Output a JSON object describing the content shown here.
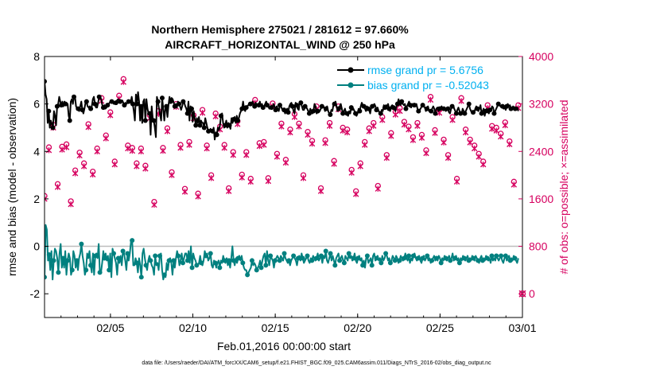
{
  "colors": {
    "rmse": "#000000",
    "bias": "#00807f",
    "obs": "#d6005f",
    "legend_text": "#00b0f0",
    "zero_line": "#bdbdbd"
  },
  "chart_data": {
    "type": "line",
    "title": "Northern Hemisphere 275021 / 281612 = 97.660%",
    "subtitle": "AIRCRAFT_HORIZONTAL_WIND @ 250 hPa",
    "xlabel": "Feb.01,2016 00:00:00 start",
    "ylabel_left": "rmse and bias (model - observation)",
    "ylabel_right": "# of obs: o=possible; ×=assimilated",
    "footnote": "data file: /Users/raeder/DAI/ATM_forcXX/CAM6_setup/f.e21.FHIST_BGC.f09_025.CAM6assim.011/Diags_NTrS_2016-02/obs_diag_output.nc",
    "xlim_days": [
      1,
      30
    ],
    "ylim_left": [
      -3,
      8
    ],
    "ylim_right": [
      -400,
      4000
    ],
    "x_ticks": [
      {
        "day": 5,
        "label": "02/05"
      },
      {
        "day": 10,
        "label": "02/10"
      },
      {
        "day": 15,
        "label": "02/15"
      },
      {
        "day": 20,
        "label": "02/20"
      },
      {
        "day": 25,
        "label": "02/25"
      },
      {
        "day": 30,
        "label": "03/01"
      }
    ],
    "y_left_ticks": [
      -2,
      0,
      2,
      4,
      6,
      8
    ],
    "y_right_ticks": [
      0,
      800,
      1600,
      2400,
      3200,
      4000
    ],
    "grid": false,
    "legend_position": "top-right",
    "series": [
      {
        "name": "rmse grand pr = 5.6756",
        "axis": "left",
        "marker": "filled-circle",
        "values": [
          6.95,
          6.4,
          6.2,
          5.2,
          5.7,
          5.0,
          5.3,
          5.15,
          5.0,
          5.7,
          5.5,
          5.1,
          5.9,
          6.0,
          6.3,
          6.1,
          5.95,
          6.1,
          5.9,
          6.1,
          6.0,
          5.95,
          6.0,
          5.5,
          5.3,
          6.1,
          6.2,
          6.0,
          6.3,
          6.3,
          5.9,
          5.8,
          5.8,
          5.7,
          5.9,
          6.1,
          5.75,
          5.6,
          5.8,
          6.05,
          6.1,
          5.9,
          5.85,
          5.9,
          5.8,
          5.9,
          6.2,
          6.3,
          6.0,
          5.85,
          5.85,
          6.05,
          6.3,
          6.25,
          6.2,
          5.95,
          5.85,
          5.95,
          5.8,
          5.85,
          5.95,
          6.0,
          6.05,
          6.15,
          6.1,
          6.05,
          6.0,
          6.1,
          6.05,
          6.15,
          6.2,
          6.15,
          6.1,
          6.05,
          6.15,
          6.05,
          5.95,
          6.05,
          6.0,
          6.05,
          6.1,
          6.15,
          6.05,
          6.3,
          6.0,
          5.7,
          5.3,
          6.4,
          6.0,
          6.5,
          6.1,
          5.3,
          5.9,
          5.2,
          6.1,
          6.2,
          5.3,
          6.2,
          5.8,
          5.6,
          5.6,
          4.7,
          5.9,
          5.4,
          5.3,
          5.0,
          4.6,
          6.3,
          6.1,
          5.8,
          5.55,
          5.3,
          6.25,
          5.8,
          5.3,
          5.8,
          5.9,
          5.45,
          5.95,
          6.3,
          6.1,
          6.25,
          6.2,
          6.05,
          5.9,
          6.0,
          5.85,
          6.1,
          6.0,
          5.9,
          5.75,
          5.9,
          6.1,
          6.05,
          5.9,
          5.8,
          5.6,
          6.1,
          5.3,
          5.9,
          5.8,
          5.25,
          5.7,
          5.4,
          5.1,
          5.4,
          5.2,
          5.45,
          5.1,
          5.3,
          5.2,
          5.2,
          5.0,
          5.4,
          5.2,
          5.0,
          4.85,
          4.8,
          4.95,
          4.9,
          4.85,
          5.0,
          4.5,
          4.8,
          4.7,
          5.0,
          4.9,
          5.1,
          5.5,
          5.6,
          5.2,
          5.0,
          5.1,
          5.3,
          5.0,
          5.2,
          5.1,
          4.95,
          5.4,
          5.2,
          5.35,
          5.45,
          5.2,
          5.5,
          5.3,
          5.4,
          5.6,
          5.7,
          5.8,
          6.1,
          5.8,
          5.7,
          5.85,
          5.9,
          5.95,
          6.05,
          6.0,
          5.95,
          6.1,
          6.0,
          5.9,
          6.05,
          5.95,
          6.0,
          5.95,
          6.1,
          5.9,
          6.0,
          5.85,
          5.9,
          6.0,
          6.1,
          5.95,
          5.9,
          5.8,
          5.9,
          5.85,
          5.8,
          6.0,
          5.9,
          5.75,
          5.9,
          5.8,
          5.7,
          5.95,
          5.9,
          5.8,
          5.7,
          5.75,
          5.6,
          5.7,
          5.8,
          5.65,
          5.9,
          6.0,
          6.05,
          5.9,
          5.7,
          5.6,
          6.05,
          5.95,
          5.8,
          5.75,
          6.1,
          6.05,
          5.9,
          5.75,
          5.75,
          5.9,
          5.85,
          5.8,
          5.7,
          5.6,
          5.8,
          5.7,
          5.6,
          5.7,
          6.0,
          5.9,
          5.6,
          5.7,
          5.65,
          5.7,
          5.8,
          5.9,
          5.95,
          5.85,
          5.7,
          5.8,
          5.9,
          5.7,
          5.6,
          5.55,
          5.75,
          5.7,
          5.95,
          6.0,
          6.1,
          5.9,
          5.7,
          5.8,
          5.9,
          6.0,
          5.8,
          5.6,
          5.7,
          5.8,
          5.6,
          5.6,
          5.5,
          5.7,
          5.6,
          5.85,
          5.75,
          5.8,
          5.7,
          5.6,
          5.5,
          5.6,
          5.8,
          5.7,
          5.9,
          6.05,
          5.95,
          5.9,
          5.8,
          5.7,
          5.9,
          5.8,
          5.75,
          5.6,
          5.85,
          5.9,
          5.95,
          6.0,
          5.9,
          5.75,
          5.85,
          5.7,
          5.65,
          5.6,
          5.75,
          5.7,
          5.95,
          5.85,
          5.95,
          5.9,
          6.0,
          5.8,
          5.7,
          5.9,
          5.95,
          5.85,
          5.8,
          5.7,
          5.9,
          6.0,
          6.2,
          6.0,
          5.95,
          6.1,
          6.0,
          5.95,
          6.0,
          5.8,
          5.9,
          6.0,
          6.1,
          5.95,
          5.85,
          6.0,
          5.9,
          5.95,
          5.9,
          6.0,
          5.8,
          5.7,
          5.75,
          5.8,
          5.9,
          5.95,
          5.9,
          5.85,
          5.7,
          5.8,
          5.9,
          5.7,
          5.75,
          5.7,
          5.8,
          5.9,
          5.8,
          5.6,
          5.8,
          5.85,
          5.7,
          5.8,
          5.85,
          5.9,
          5.75,
          5.8,
          5.85,
          5.7,
          5.75,
          5.8,
          5.65,
          5.6,
          5.8,
          5.9,
          5.95,
          5.8,
          5.7,
          5.6,
          5.75,
          5.85,
          5.7,
          5.6,
          5.55,
          5.8,
          5.7,
          5.6,
          5.7,
          5.8,
          5.9,
          6.0,
          5.8,
          5.7,
          5.6,
          5.65,
          5.6,
          5.8,
          5.9,
          5.8,
          5.7,
          5.8,
          5.95,
          5.6,
          5.7,
          5.8,
          5.5,
          5.7,
          5.8,
          5.65,
          5.6,
          5.75,
          5.7,
          5.9,
          5.85,
          5.6,
          5.7,
          5.8,
          5.9,
          6.0,
          5.95,
          5.9,
          5.85,
          5.9,
          5.8,
          5.85,
          5.75,
          5.9,
          6.0,
          5.9,
          5.95,
          5.8,
          5.8,
          5.9,
          5.85,
          5.8,
          5.75,
          5.85,
          5.7
        ]
      },
      {
        "name": "bias grand pr = -0.52043",
        "axis": "left",
        "marker": "filled-circle",
        "values": [
          -1.3,
          0.9,
          0.7,
          -0.6,
          -0.35,
          -1.0,
          -0.2,
          -1.4,
          -0.6,
          -0.1,
          -0.2,
          -0.5,
          -1.1,
          -0.3,
          0.1,
          -0.9,
          -0.5,
          -0.9,
          -0.2,
          -1.2,
          -0.6,
          -0.3,
          -0.5,
          -1.2,
          -1.0,
          -0.2,
          -0.4,
          -0.9,
          -0.6,
          -1.0,
          -0.5,
          -0.3,
          0.1,
          -0.4,
          -0.7,
          -1.2,
          -1.0,
          -0.3,
          -0.5,
          -0.2,
          -0.8,
          -1.1,
          -0.3,
          -1.2,
          -0.4,
          -0.3,
          -0.5,
          0.1,
          -1.1,
          -1.1,
          -0.7,
          -0.2,
          -0.5,
          -0.3,
          -0.6,
          -0.4,
          -1.0,
          -0.3,
          -1.3,
          -0.1,
          -0.3,
          -0.5,
          -0.7,
          -1.2,
          -0.5,
          -0.7,
          -0.4,
          -0.8,
          -0.2,
          -0.3,
          -0.6,
          -1.0,
          -0.3,
          -0.6,
          -0.3,
          0.2,
          0.25,
          -0.8,
          -0.8,
          -0.5,
          -0.7,
          -1.1,
          -0.5,
          -0.8,
          -1.3,
          -0.3,
          -0.1,
          -0.5,
          -0.8,
          -1.0,
          -0.6,
          -0.4,
          -0.6,
          -0.8,
          -0.9,
          -1.2,
          -0.4,
          -0.8,
          -0.7,
          -1.0,
          -0.4,
          -0.3,
          -1.0,
          -1.4,
          -1.2,
          -1.3,
          -0.7,
          -1.0,
          -0.6,
          -0.5,
          -0.7,
          -1.2,
          -0.6,
          -0.9,
          -0.5,
          -0.2,
          -0.4,
          -0.8,
          -0.6,
          -0.3,
          -0.7,
          -0.5,
          -0.3,
          -0.3,
          -0.6,
          -0.2,
          -0.7,
          0.0,
          -0.9,
          -0.3,
          -0.5,
          -0.6,
          -0.8,
          -0.8,
          -0.7,
          -0.4,
          -0.7,
          -0.8,
          -0.6,
          -0.2,
          -0.4,
          -0.3,
          -0.6,
          -0.5,
          -0.3,
          -0.8,
          -0.9,
          -0.6,
          -0.7,
          -0.9,
          -0.7,
          -0.6,
          -0.9,
          -0.6,
          -0.7,
          -0.4,
          -0.6,
          -0.7,
          -0.5,
          -0.8,
          -0.6,
          -0.9,
          -0.5,
          0.0,
          -0.6,
          -0.8,
          -0.5,
          -0.7,
          -0.5,
          -0.4,
          -0.6,
          -0.4,
          -0.7,
          -0.9,
          -1.0,
          -1.0,
          -1.2,
          -1.1,
          -1.0,
          -0.9,
          -0.6,
          -0.8,
          -0.7,
          -0.8,
          -1.0,
          -0.9,
          -0.8,
          -0.6,
          -0.9,
          -0.6,
          -0.4,
          -0.3,
          -0.8,
          -0.2,
          -0.6,
          -0.8,
          -0.4,
          -0.5,
          -0.6,
          -0.9,
          -0.6,
          -0.5,
          -0.4,
          -0.5,
          -0.6,
          -0.4,
          -0.5,
          -0.6,
          -0.3,
          -0.5,
          -0.6,
          -0.7,
          -0.6,
          -0.8,
          -0.6,
          -0.5,
          -0.4,
          -0.5,
          -0.6,
          -0.8,
          -0.5,
          -0.4,
          -0.6,
          -0.3,
          -0.5,
          -0.7,
          -0.6,
          -0.5,
          -0.4,
          -0.6,
          -0.7,
          -0.5,
          -0.6,
          -0.4,
          -0.5,
          -0.6,
          -0.5,
          -0.3,
          -0.6,
          -0.5,
          -0.4,
          -0.7,
          -0.4,
          -0.5,
          -0.2,
          -0.6,
          -0.7,
          -0.5,
          -0.3,
          -0.6,
          -0.4,
          -0.6,
          -0.8,
          -0.5,
          -0.4,
          -0.3,
          -0.6,
          -0.5,
          -0.4,
          -0.6,
          -0.7,
          -0.4,
          -0.5,
          -0.6,
          -0.3,
          -0.5,
          -0.4,
          -0.6,
          -0.5,
          -0.3,
          -0.6,
          -0.7,
          -0.5,
          -0.4,
          -0.6,
          -0.5,
          -0.8,
          -0.6,
          -0.9,
          -0.5,
          -0.4,
          -0.7,
          -0.6,
          -0.5,
          -0.8,
          -0.4,
          -0.3,
          -0.6,
          -0.5,
          -0.4,
          -0.6,
          -0.5,
          -0.7,
          -0.4,
          -0.6,
          -0.5,
          -0.3,
          -0.4,
          -0.6,
          -0.5,
          -0.7,
          -0.6,
          -0.4,
          -0.5,
          -0.6,
          -0.4,
          -0.5,
          -0.7,
          -0.6,
          -0.4,
          -0.5,
          -0.6,
          -0.5,
          -0.3,
          -0.5,
          -0.6,
          -0.4,
          -0.7,
          -0.5,
          -0.6,
          -0.4,
          -0.3,
          -0.5,
          -0.6,
          -0.5,
          -0.4,
          -0.6,
          -0.7,
          -0.5,
          -0.4,
          -0.6,
          -0.5,
          -0.4,
          -0.6,
          -0.5,
          -0.7,
          -0.6,
          -0.5,
          -0.4,
          -0.6,
          -0.5,
          -0.6,
          -0.4,
          -0.5,
          -0.7,
          -0.5,
          -0.6,
          -0.4,
          -0.5,
          -0.6,
          -0.5,
          -0.4,
          -0.6,
          -0.5,
          -0.3,
          -0.6,
          -0.5,
          -0.4,
          -0.6,
          -0.5,
          -0.7,
          -0.5,
          -0.6,
          -0.4,
          -0.5,
          -0.6,
          -0.5,
          -0.4,
          -0.6,
          -0.5,
          -0.6,
          -0.4,
          -0.5,
          -0.6,
          -0.4,
          -0.5,
          -0.6,
          -0.7,
          -0.5,
          -0.4,
          -0.6,
          -0.5,
          -0.6,
          -0.4,
          -0.5,
          -0.6,
          -0.5,
          -0.7,
          -0.4,
          -0.6,
          -0.5,
          -0.6,
          -0.4,
          -0.5,
          -0.6,
          -0.5,
          -0.4,
          -0.6,
          -0.7,
          -0.5,
          -0.4,
          -0.6,
          -0.5,
          -0.4,
          -0.6,
          -0.5,
          -0.6,
          -0.4,
          -0.5,
          -0.6,
          -0.7,
          -0.5
        ]
      },
      {
        "name": "possible",
        "axis": "right",
        "marker": "open-circle",
        "values": [
          1650,
          2470,
          2850,
          1850,
          2480,
          2520,
          1560,
          2080,
          2380,
          2200,
          2860,
          2060,
          2450,
          3300,
          2670,
          3060,
          2230,
          3340,
          3620,
          2500,
          2460,
          2200,
          2450,
          2160,
          3010,
          1550,
          3080,
          2460,
          2790,
          2050,
          3200,
          2510,
          1770,
          2560,
          3010,
          1690,
          3100,
          2500,
          2000,
          3040,
          2820,
          2510,
          1780,
          2390,
          2910,
          2010,
          2390,
          1940,
          3270,
          2540,
          2560,
          1950,
          3210,
          2360,
          2870,
          2260,
          2770,
          3030,
          2870,
          2000,
          2730,
          2580,
          3160,
          1780,
          2590,
          2880,
          2240,
          3160,
          2800,
          2770,
          2090,
          1730,
          2200,
          2560,
          2790,
          2880,
          1820,
          2980,
          2340,
          2710,
          3070,
          3130,
          2900,
          2820,
          2640,
          2880,
          2680,
          2420,
          3320,
          2760,
          3100,
          2600,
          2340,
          2980,
          1940,
          3300,
          2770,
          2600,
          2500,
          2360,
          2230,
          3180,
          2830,
          2800,
          2700,
          2890,
          2570,
          1890,
          3180
        ]
      },
      {
        "name": "assimilated",
        "axis": "right",
        "marker": "x",
        "values": [
          1600,
          2420,
          2800,
          1800,
          2430,
          2470,
          1510,
          2030,
          2330,
          2150,
          2810,
          2010,
          2400,
          3250,
          2620,
          3010,
          2180,
          3290,
          3570,
          2450,
          2410,
          2150,
          2400,
          2110,
          2960,
          1500,
          3030,
          2410,
          2740,
          2000,
          3150,
          2460,
          1720,
          2510,
          2960,
          1640,
          3050,
          2450,
          1950,
          2990,
          2770,
          2460,
          1730,
          2340,
          2860,
          1960,
          2340,
          1890,
          3220,
          2490,
          2510,
          1900,
          3160,
          2310,
          2820,
          2210,
          2720,
          2980,
          2820,
          1950,
          2680,
          2530,
          3110,
          1730,
          2540,
          2830,
          2190,
          3110,
          2750,
          2720,
          2040,
          1680,
          2150,
          2510,
          2740,
          2830,
          1770,
          2930,
          2290,
          2660,
          3020,
          3080,
          2850,
          2770,
          2590,
          2830,
          2630,
          2370,
          3270,
          2710,
          3050,
          2550,
          2290,
          2930,
          1890,
          3250,
          2720,
          2550,
          2450,
          2310,
          2180,
          3130,
          2780,
          2750,
          2650,
          2840,
          2520,
          1840,
          3130
        ]
      }
    ],
    "annotations": [
      "0"
    ]
  }
}
